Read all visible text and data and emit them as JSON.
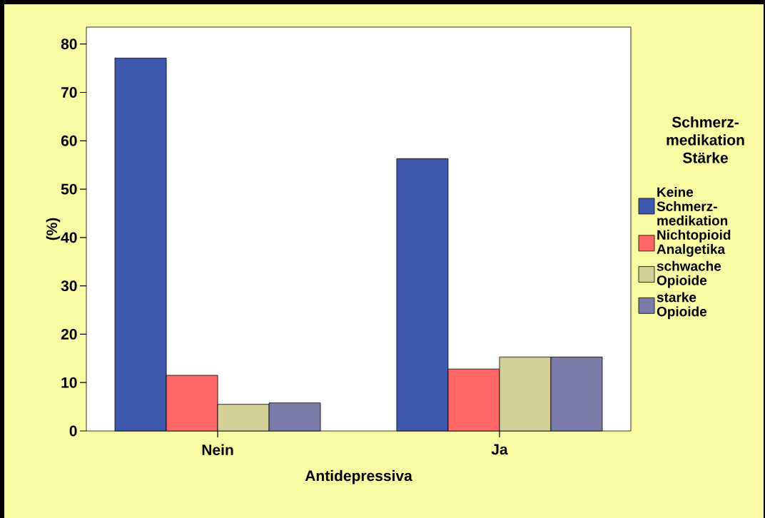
{
  "chart_data": {
    "type": "bar",
    "xlabel": "Antidepressiva",
    "ylabel": "(%)",
    "legend_title": "Schmerz-medikation Stärke",
    "categories": [
      "Nein",
      "Ja"
    ],
    "series": [
      {
        "name": "Keine Schmerz-medikation",
        "color": "#3e59ac",
        "values": [
          77.1,
          56.3
        ]
      },
      {
        "name": "Nichtopioid Analgetika",
        "color": "#ff6666",
        "values": [
          11.5,
          12.8
        ]
      },
      {
        "name": "schwache Opioide",
        "color": "#d4cf98",
        "values": [
          5.5,
          15.3
        ]
      },
      {
        "name": "starke Opioide",
        "color": "#7a7ba8",
        "values": [
          5.8,
          15.3
        ]
      }
    ],
    "ylim": [
      0,
      83.5
    ],
    "yticks": [
      0,
      10,
      20,
      30,
      40,
      50,
      60,
      70,
      80
    ],
    "grid": false,
    "legend": "right"
  }
}
